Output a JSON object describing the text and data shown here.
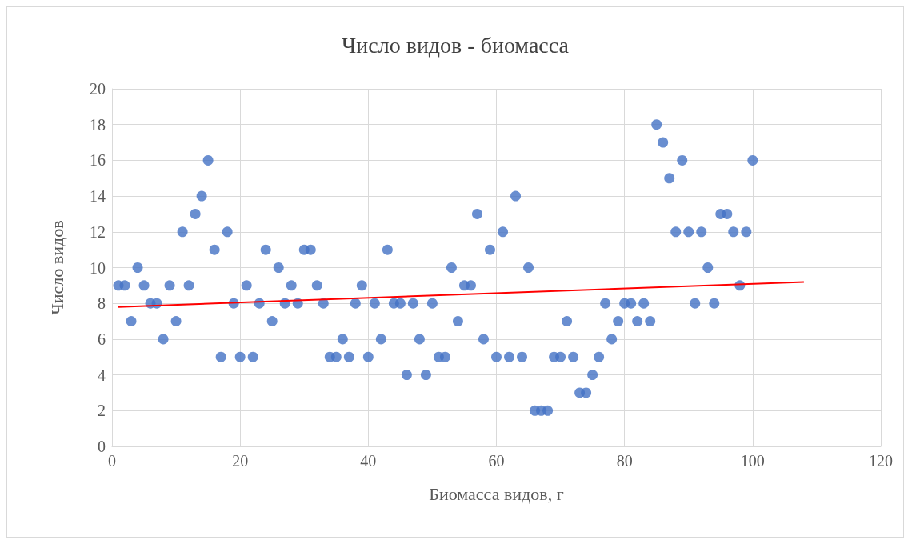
{
  "chart_data": {
    "type": "scatter",
    "title": "Число видов - биомасса",
    "xlabel": "Биомасса видов, г",
    "ylabel": "Число видов",
    "xlim": [
      0,
      120
    ],
    "xticks": [
      0,
      20,
      40,
      60,
      80,
      100,
      120
    ],
    "ylim": [
      0,
      20
    ],
    "yticks": [
      0,
      2,
      4,
      6,
      8,
      10,
      12,
      14,
      16,
      18,
      20
    ],
    "grid": true,
    "marker": "circle",
    "series": [
      {
        "color": "#4472c4",
        "x": [
          1,
          2,
          3,
          4,
          5,
          6,
          7,
          8,
          9,
          10,
          11,
          12,
          13,
          14,
          15,
          16,
          17,
          18,
          19,
          20,
          21,
          22,
          23,
          24,
          25,
          26,
          27,
          28,
          29,
          30,
          31,
          32,
          33,
          34,
          35,
          36,
          37,
          38,
          39,
          40,
          41,
          42,
          43,
          44,
          45,
          46,
          47,
          48,
          49,
          50,
          51,
          52,
          53,
          54,
          55,
          56,
          57,
          58,
          59,
          60,
          61,
          62,
          63,
          64,
          65,
          66,
          67,
          68,
          69,
          70,
          71,
          72,
          73,
          74,
          75,
          76,
          77,
          78,
          79,
          80,
          81,
          82,
          83,
          84,
          85,
          86,
          87,
          88,
          89,
          90,
          91,
          92,
          93,
          94,
          95,
          96,
          97,
          98,
          99,
          100
        ],
        "values": [
          9,
          9,
          7,
          10,
          9,
          8,
          8,
          6,
          9,
          7,
          12,
          9,
          13,
          14,
          16,
          11,
          5,
          12,
          8,
          5,
          9,
          5,
          8,
          11,
          7,
          10,
          8,
          9,
          8,
          11,
          11,
          9,
          8,
          5,
          5,
          6,
          5,
          8,
          9,
          5,
          8,
          6,
          11,
          8,
          8,
          4,
          8,
          6,
          4,
          8,
          5,
          5,
          10,
          7,
          9,
          9,
          13,
          6,
          11,
          5,
          12,
          5,
          14,
          5,
          10,
          2,
          2,
          2,
          5,
          5,
          7,
          5,
          3,
          3,
          4,
          5,
          8,
          6,
          7,
          8,
          8,
          7,
          8,
          7,
          18,
          17,
          15,
          12,
          16,
          12,
          8,
          12,
          10,
          8,
          13,
          13,
          12,
          9,
          12,
          16
        ]
      },
      {
        "type": "line",
        "color": "#ff0000",
        "marker": "none",
        "line_style": "solid",
        "x": [
          1,
          108
        ],
        "values": [
          7.8,
          9.2
        ]
      }
    ]
  }
}
